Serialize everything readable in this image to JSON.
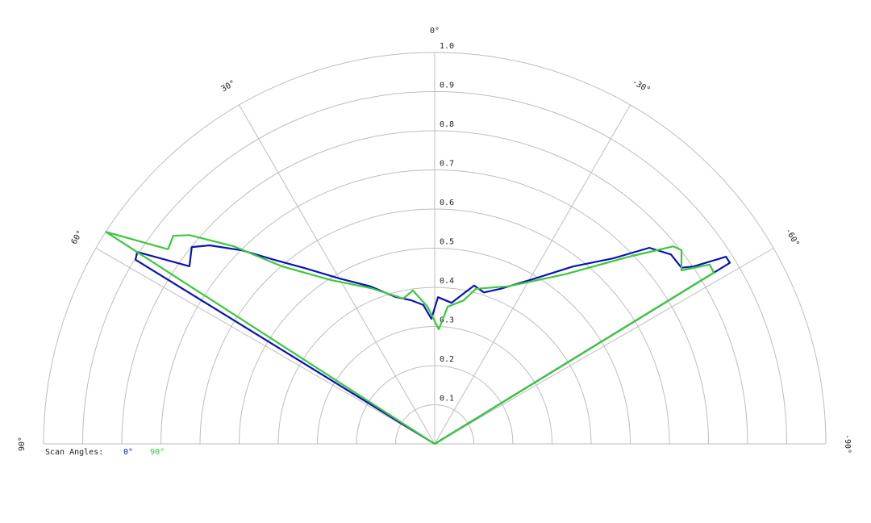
{
  "chart_data": {
    "type": "polar",
    "legend_title": "Scan Angles:",
    "thetalim": [
      -90,
      90
    ],
    "rlim": [
      0,
      1
    ],
    "thetaticks": [
      {
        "value": 0,
        "label": "0°"
      },
      {
        "value": 30,
        "label": "30°"
      },
      {
        "value": 60,
        "label": "60°"
      },
      {
        "value": 90,
        "label": "90°"
      },
      {
        "value": -30,
        "label": "-30°"
      },
      {
        "value": -60,
        "label": "-60°"
      },
      {
        "value": -90,
        "label": "-90°"
      }
    ],
    "rticks": [
      0.1,
      0.2,
      0.3,
      0.4,
      0.5,
      0.6,
      0.7,
      0.8,
      0.9,
      {
        "value": 1,
        "label": "1.0"
      }
    ],
    "grid": true,
    "series": [
      {
        "name": "0°",
        "color": "#0a14b4",
        "theta": [
          58.4,
          58.4,
          57.2,
          54.1,
          51.0,
          48.6,
          44.9,
          41.1,
          36.2,
          30.1,
          22.1,
          15.1,
          9.3,
          4.7,
          1.5,
          -1.3,
          -6.8,
          -14.0,
          -18.0,
          -22.9,
          -30.7,
          -37.9,
          -43.9,
          -47.6,
          -51.3,
          -54.5,
          -55.6,
          -57.3,
          -58.5,
          -58.5
        ],
        "values": [
          0,
          0.898,
          0.905,
          0.774,
          0.799,
          0.767,
          0.698,
          0.624,
          0.555,
          0.489,
          0.434,
          0.389,
          0.372,
          0.356,
          0.32,
          0.375,
          0.363,
          0.417,
          0.407,
          0.43,
          0.489,
          0.574,
          0.658,
          0.743,
          0.774,
          0.775,
          0.802,
          0.885,
          0.885,
          0
        ]
      },
      {
        "name": "90°",
        "color": "#3cc83c",
        "theta": [
          57.2,
          57.2,
          53.9,
          51.5,
          49.6,
          45.5,
          40.7,
          32.4,
          22.3,
          12.2,
          8.1,
          3.0,
          -2.0,
          -5.4,
          -11.4,
          -14.9,
          -25.0,
          -37.5,
          -46.1,
          -50.4,
          -51.9,
          -54.9,
          -56.9,
          -58.5,
          -58.5
        ],
        "values": [
          0,
          1.0,
          0.844,
          0.854,
          0.823,
          0.72,
          0.598,
          0.496,
          0.43,
          0.38,
          0.396,
          0.351,
          0.293,
          0.352,
          0.374,
          0.41,
          0.444,
          0.546,
          0.69,
          0.792,
          0.802,
          0.771,
          0.839,
          0.837,
          0
        ]
      }
    ]
  }
}
